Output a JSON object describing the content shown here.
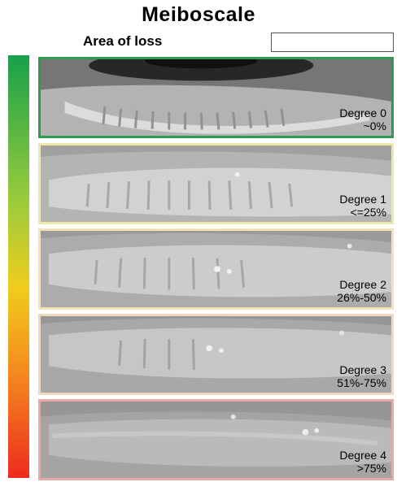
{
  "title": "Meiboscale",
  "area_of_loss": {
    "label": "Area of loss",
    "value": ""
  },
  "scale_colors": {
    "top": "#18a04a",
    "middle": "#f0cc1c",
    "bottom": "#ed2b1e"
  },
  "degrees": [
    {
      "name": "Degree 0",
      "loss": "~0%",
      "border_color": "#2e9a4e"
    },
    {
      "name": "Degree 1",
      "loss": "<=25%",
      "border_color": "#efe8a8"
    },
    {
      "name": "Degree 2",
      "loss": "26%-50%",
      "border_color": "#f2e2b6"
    },
    {
      "name": "Degree 3",
      "loss": "51%-75%",
      "border_color": "#f1d8c0"
    },
    {
      "name": "Degree 4",
      "loss": ">75%",
      "border_color": "#e8a8a8"
    }
  ]
}
